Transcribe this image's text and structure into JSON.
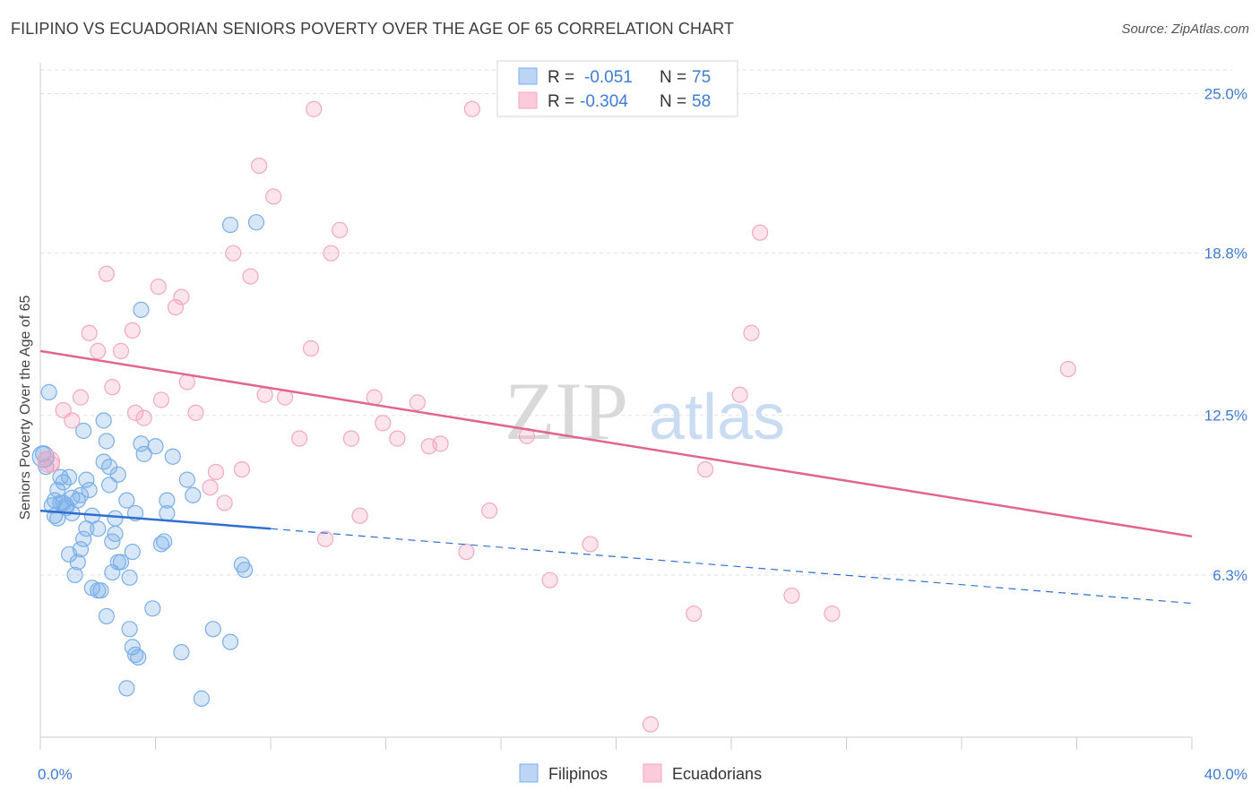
{
  "header": {
    "title": "FILIPINO VS ECUADORIAN SENIORS POVERTY OVER THE AGE OF 65 CORRELATION CHART",
    "source": "Source: ZipAtlas.com"
  },
  "watermark": {
    "zip": "ZIP",
    "atlas": "atlas"
  },
  "chart_data": {
    "type": "scatter",
    "ylabel": "Seniors Poverty Over the Age of 65",
    "xlim": [
      0,
      40
    ],
    "ylim": [
      0,
      26.2
    ],
    "x_tick_labels": [
      "0.0%",
      "40.0%"
    ],
    "y_ticks": [
      6.3,
      12.5,
      18.8,
      25.0
    ],
    "y_tick_labels": [
      "6.3%",
      "12.5%",
      "18.8%",
      "25.0%"
    ],
    "grid": true,
    "legend": {
      "placement": "top-center",
      "rows": [
        {
          "r_label": "R = ",
          "r_value": "-0.051",
          "n_label": "N = ",
          "n_value": "75"
        },
        {
          "r_label": "R = ",
          "r_value": "-0.304",
          "n_label": "N = ",
          "n_value": "58"
        }
      ]
    },
    "series": [
      {
        "name": "Filipinos",
        "color": "#7aaee8",
        "line_color": "#2f6fd0",
        "trend": {
          "x0": 0,
          "y0": 8.8,
          "x1": 8,
          "y1": 8.1,
          "dash_to_x": 40,
          "dash_to_y": 5.2
        },
        "points": [
          [
            0.1,
            11.0
          ],
          [
            0.2,
            10.5
          ],
          [
            0.3,
            13.4
          ],
          [
            0.4,
            9.0
          ],
          [
            0.5,
            9.2
          ],
          [
            0.5,
            8.6
          ],
          [
            0.6,
            9.6
          ],
          [
            0.6,
            8.5
          ],
          [
            0.7,
            10.1
          ],
          [
            0.8,
            9.9
          ],
          [
            0.8,
            9.1
          ],
          [
            0.9,
            9.0
          ],
          [
            0.9,
            8.9
          ],
          [
            1.0,
            10.1
          ],
          [
            1.0,
            7.1
          ],
          [
            1.1,
            8.7
          ],
          [
            1.1,
            9.3
          ],
          [
            1.2,
            6.3
          ],
          [
            1.3,
            6.8
          ],
          [
            1.4,
            9.4
          ],
          [
            1.4,
            7.3
          ],
          [
            1.5,
            11.9
          ],
          [
            1.5,
            7.7
          ],
          [
            1.6,
            8.1
          ],
          [
            1.6,
            10.0
          ],
          [
            1.7,
            9.6
          ],
          [
            1.8,
            8.6
          ],
          [
            1.8,
            5.8
          ],
          [
            2.0,
            5.7
          ],
          [
            2.0,
            8.1
          ],
          [
            2.1,
            5.7
          ],
          [
            2.2,
            12.3
          ],
          [
            2.2,
            10.7
          ],
          [
            2.3,
            4.7
          ],
          [
            2.3,
            11.5
          ],
          [
            2.4,
            9.8
          ],
          [
            2.4,
            10.5
          ],
          [
            2.5,
            6.4
          ],
          [
            2.5,
            7.6
          ],
          [
            2.6,
            8.5
          ],
          [
            2.6,
            7.9
          ],
          [
            2.7,
            6.8
          ],
          [
            2.7,
            10.2
          ],
          [
            2.8,
            6.8
          ],
          [
            3.0,
            9.2
          ],
          [
            3.0,
            1.9
          ],
          [
            3.1,
            6.2
          ],
          [
            3.1,
            4.2
          ],
          [
            3.2,
            7.2
          ],
          [
            3.2,
            3.5
          ],
          [
            3.3,
            8.7
          ],
          [
            3.3,
            3.2
          ],
          [
            3.4,
            3.1
          ],
          [
            3.5,
            16.6
          ],
          [
            3.5,
            11.4
          ],
          [
            3.6,
            11.0
          ],
          [
            3.9,
            5.0
          ],
          [
            4.0,
            11.3
          ],
          [
            4.2,
            7.5
          ],
          [
            4.3,
            7.6
          ],
          [
            4.4,
            9.2
          ],
          [
            4.4,
            8.7
          ],
          [
            4.6,
            10.9
          ],
          [
            4.9,
            3.3
          ],
          [
            5.1,
            10.0
          ],
          [
            5.3,
            9.4
          ],
          [
            5.6,
            1.5
          ],
          [
            6.0,
            4.2
          ],
          [
            6.6,
            3.7
          ],
          [
            6.6,
            19.9
          ],
          [
            7.0,
            6.7
          ],
          [
            7.1,
            6.5
          ],
          [
            7.5,
            20.0
          ],
          [
            1.3,
            9.2
          ],
          [
            0.7,
            9.1
          ]
        ]
      },
      {
        "name": "Ecuadorians",
        "color": "#f4a7c0",
        "line_color": "#e06590",
        "trend": {
          "x0": 0,
          "y0": 15.0,
          "x1": 40,
          "y1": 7.8
        },
        "points": [
          [
            0.2,
            10.8
          ],
          [
            0.4,
            10.6
          ],
          [
            0.8,
            12.7
          ],
          [
            1.1,
            12.3
          ],
          [
            1.4,
            13.2
          ],
          [
            1.7,
            15.7
          ],
          [
            2.0,
            15.0
          ],
          [
            2.3,
            18.0
          ],
          [
            2.5,
            13.6
          ],
          [
            2.8,
            15.0
          ],
          [
            3.2,
            15.8
          ],
          [
            3.3,
            12.6
          ],
          [
            3.6,
            12.4
          ],
          [
            4.1,
            17.5
          ],
          [
            4.2,
            13.1
          ],
          [
            4.7,
            16.7
          ],
          [
            4.9,
            17.1
          ],
          [
            5.1,
            13.8
          ],
          [
            5.4,
            12.6
          ],
          [
            5.9,
            9.7
          ],
          [
            6.1,
            10.3
          ],
          [
            6.4,
            9.1
          ],
          [
            6.7,
            18.8
          ],
          [
            7.0,
            10.4
          ],
          [
            7.3,
            17.9
          ],
          [
            7.6,
            22.2
          ],
          [
            7.8,
            13.3
          ],
          [
            8.1,
            21.0
          ],
          [
            8.5,
            13.2
          ],
          [
            9.0,
            11.6
          ],
          [
            9.4,
            15.1
          ],
          [
            9.5,
            24.4
          ],
          [
            9.9,
            7.7
          ],
          [
            10.1,
            18.8
          ],
          [
            10.4,
            19.7
          ],
          [
            10.8,
            11.6
          ],
          [
            11.1,
            8.6
          ],
          [
            11.6,
            13.2
          ],
          [
            11.9,
            12.2
          ],
          [
            12.4,
            11.6
          ],
          [
            13.1,
            13.0
          ],
          [
            13.5,
            11.3
          ],
          [
            13.9,
            11.4
          ],
          [
            14.8,
            7.2
          ],
          [
            15.0,
            24.4
          ],
          [
            15.6,
            8.8
          ],
          [
            16.9,
            11.7
          ],
          [
            17.7,
            6.1
          ],
          [
            19.1,
            7.5
          ],
          [
            21.2,
            0.5
          ],
          [
            22.7,
            4.8
          ],
          [
            23.1,
            10.4
          ],
          [
            24.3,
            13.3
          ],
          [
            24.7,
            15.7
          ],
          [
            25.0,
            19.6
          ],
          [
            26.1,
            5.5
          ],
          [
            27.5,
            4.8
          ],
          [
            35.7,
            14.3
          ]
        ]
      }
    ]
  }
}
